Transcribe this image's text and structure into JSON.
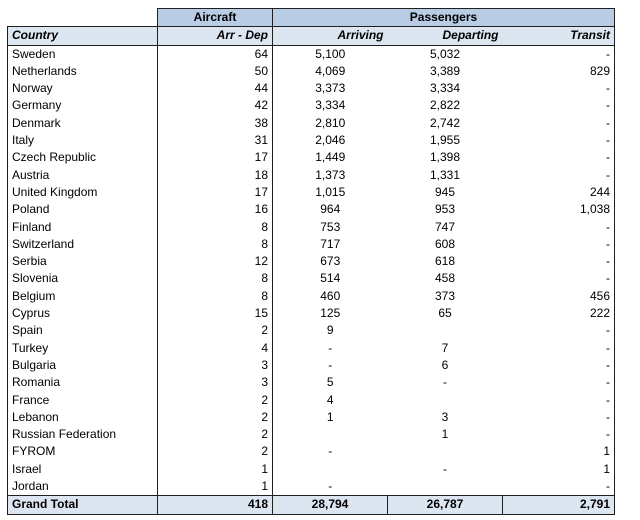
{
  "header": {
    "aircraft": "Aircraft",
    "passengers": "Passengers"
  },
  "subheader": {
    "country": "Country",
    "arr_dep": "Arr - Dep",
    "arriving": "Arriving",
    "departing": "Departing",
    "transit": "Transit"
  },
  "rows": [
    [
      "Sweden",
      "64",
      "5,100",
      "5,032",
      "-"
    ],
    [
      "Netherlands",
      "50",
      "4,069",
      "3,389",
      "829"
    ],
    [
      "Norway",
      "44",
      "3,373",
      "3,334",
      "-"
    ],
    [
      "Germany",
      "42",
      "3,334",
      "2,822",
      "-"
    ],
    [
      "Denmark",
      "38",
      "2,810",
      "2,742",
      "-"
    ],
    [
      "Italy",
      "31",
      "2,046",
      "1,955",
      "-"
    ],
    [
      "Czech Republic",
      "17",
      "1,449",
      "1,398",
      "-"
    ],
    [
      "Austria",
      "18",
      "1,373",
      "1,331",
      "-"
    ],
    [
      "United Kingdom",
      "17",
      "1,015",
      "945",
      "244"
    ],
    [
      "Poland",
      "16",
      "964",
      "953",
      "1,038"
    ],
    [
      "Finland",
      "8",
      "753",
      "747",
      "-"
    ],
    [
      "Switzerland",
      "8",
      "717",
      "608",
      "-"
    ],
    [
      "Serbia",
      "12",
      "673",
      "618",
      "-"
    ],
    [
      "Slovenia",
      "8",
      "514",
      "458",
      "-"
    ],
    [
      "Belgium",
      "8",
      "460",
      "373",
      "456"
    ],
    [
      "Cyprus",
      "15",
      "125",
      "65",
      "222"
    ],
    [
      "Spain",
      "2",
      "9",
      "",
      "-"
    ],
    [
      "Turkey",
      "4",
      "-",
      "7",
      "-"
    ],
    [
      "Bulgaria",
      "3",
      "-",
      "6",
      "-"
    ],
    [
      "Romania",
      "3",
      "5",
      "-",
      "-"
    ],
    [
      "France",
      "2",
      "4",
      "",
      "-"
    ],
    [
      "Lebanon",
      "2",
      "1",
      "3",
      "-"
    ],
    [
      "Russian Federation",
      "2",
      "",
      "1",
      "-"
    ],
    [
      "FYROM",
      "2",
      "-",
      "",
      "1"
    ],
    [
      "Israel",
      "1",
      "",
      "-",
      "1"
    ],
    [
      "Jordan",
      "1",
      "-",
      "",
      "-"
    ]
  ],
  "total": {
    "label": "Grand Total",
    "aircraft": "418",
    "arriving": "28,794",
    "departing": "26,787",
    "transit": "2,791"
  }
}
